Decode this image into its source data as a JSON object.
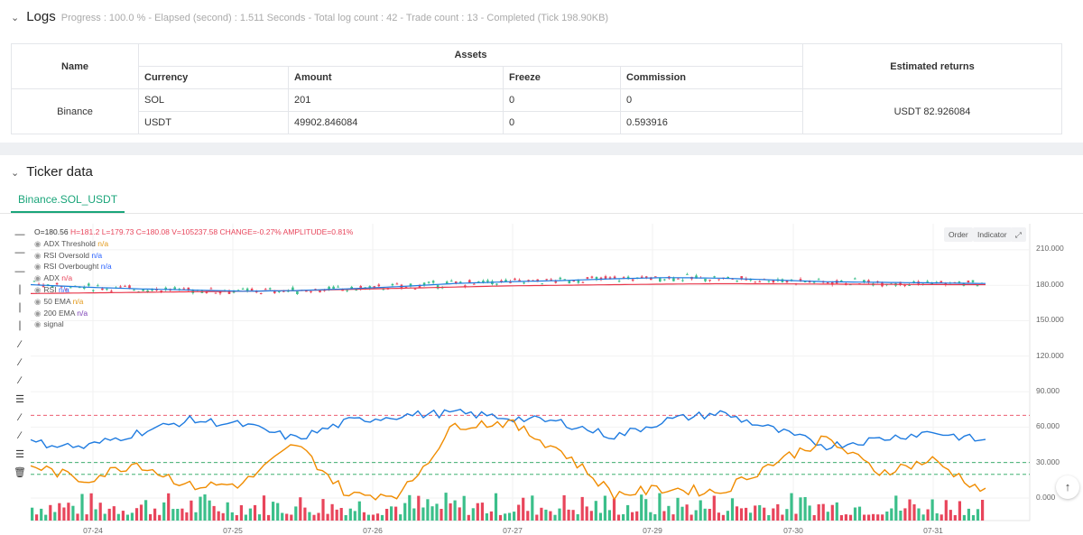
{
  "logs": {
    "title": "Logs",
    "meta": "Progress : 100.0 % - Elapsed (second) : 1.511  Seconds - Total log count : 42 - Trade count : 13 - Completed (Tick 198.90KB)"
  },
  "assets_table": {
    "header_name": "Name",
    "header_assets": "Assets",
    "header_returns": "Estimated returns",
    "sub_headers": [
      "Currency",
      "Amount",
      "Freeze",
      "Commission"
    ],
    "exchange": "Binance",
    "rows": [
      {
        "currency": "SOL",
        "amount": "201",
        "freeze": "0",
        "commission": "0"
      },
      {
        "currency": "USDT",
        "amount": "49902.846084",
        "freeze": "0",
        "commission": "0.593916"
      }
    ],
    "estimated_returns": "USDT 82.926084"
  },
  "ticker": {
    "title": "Ticker data",
    "tab": "Binance.SOL_USDT",
    "ohlc": {
      "o": "O=180.56",
      "h": "H=181.2",
      "l": "L=179.73",
      "c": "C=180.08",
      "v": "V=105237.58",
      "change": "CHANGE=-0.27%",
      "amplitude": "AMPLITUDE=0.81%"
    },
    "legend": [
      {
        "name": "ADX Threshold",
        "value": "n/a",
        "color": "#e39a1b"
      },
      {
        "name": "RSI Oversold",
        "value": "n/a",
        "color": "#2962ff"
      },
      {
        "name": "RSI Overbought",
        "value": "n/a",
        "color": "#2962ff"
      },
      {
        "name": "ADX",
        "value": "n/a",
        "color": "#e8455b"
      },
      {
        "name": "RSI",
        "value": "n/a",
        "color": "#2962ff"
      },
      {
        "name": "50 EMA",
        "value": "n/a",
        "color": "#e39a1b"
      },
      {
        "name": "200 EMA",
        "value": "n/a",
        "color": "#7b3fb5"
      },
      {
        "name": "signal",
        "value": "",
        "color": "#999999"
      }
    ],
    "buttons": {
      "order": "Order",
      "indicator": "Indicator"
    },
    "y_labels": [
      "210.000",
      "180.000",
      "150.000",
      "120.000",
      "90.000",
      "60.000",
      "30.000",
      "0.000"
    ],
    "x_labels": [
      "07-24",
      "07-25",
      "07-26",
      "07-27",
      "07-29",
      "07-30",
      "07-31"
    ]
  },
  "chart_data": {
    "type": "line",
    "x_labels": [
      "07-24",
      "07-25",
      "07-26",
      "07-27",
      "07-29",
      "07-30",
      "07-31"
    ],
    "ylim": [
      0,
      220
    ],
    "series": [
      {
        "name": "50 EMA",
        "color": "#1e7be0",
        "values": [
          180.5,
          178.5,
          177,
          176,
          175,
          175.5,
          177,
          179,
          181.5,
          183,
          184,
          185.5,
          186.5,
          186,
          184.5,
          183,
          182.5,
          182,
          181.5
        ]
      },
      {
        "name": "200 EMA",
        "color": "#e8364a",
        "values": [
          173,
          173.5,
          174,
          174.5,
          175,
          175.5,
          176.5,
          177.5,
          178.5,
          179.5,
          180,
          180.5,
          181,
          181.3,
          181.2,
          181,
          180.8,
          180.6,
          180.5
        ]
      },
      {
        "name": "ADX",
        "color": "#1e7be0",
        "values": [
          47,
          43,
          55,
          66,
          62,
          50,
          65,
          70,
          72,
          68,
          64,
          52,
          66,
          72,
          58,
          44,
          50,
          56,
          48
        ]
      },
      {
        "name": "RSI",
        "color": "#f08c00",
        "values": [
          28,
          15,
          30,
          10,
          12,
          46,
          2,
          4,
          62,
          64,
          40,
          3,
          8,
          5,
          30,
          50,
          22,
          32,
          5
        ]
      },
      {
        "name": "RSI Overbought",
        "color": "#e8455b",
        "values": [
          70
        ]
      },
      {
        "name": "RSI Oversold",
        "color": "#22a35a",
        "values": [
          30
        ]
      },
      {
        "name": "ADX Threshold",
        "color": "#22a35a",
        "values": [
          20
        ]
      }
    ]
  },
  "colors": {
    "up": "#3bbf8a",
    "down": "#e8455b",
    "accent": "#1aa57a"
  }
}
